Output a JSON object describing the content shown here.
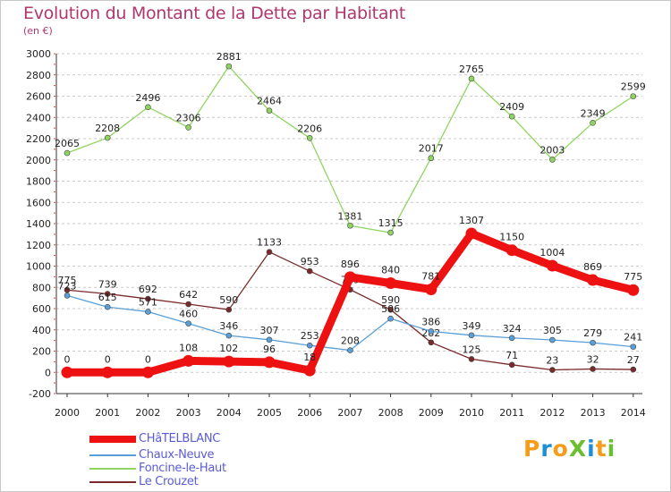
{
  "title": "Evolution du Montant de la Dette par Habitant",
  "subtitle": "(en €)",
  "logo_text": "ProXiti",
  "chart_data": {
    "type": "line",
    "title": "Evolution du Montant de la Dette par Habitant",
    "subtitle": "(en €)",
    "x": [
      "2000",
      "2001",
      "2002",
      "2003",
      "2004",
      "2005",
      "2006",
      "2007",
      "2008",
      "2009",
      "2010",
      "2011",
      "2012",
      "2013",
      "2014"
    ],
    "ylim": [
      -200,
      3000
    ],
    "yticks": [
      "-200",
      "0",
      "200",
      "400",
      "600",
      "800",
      "1000",
      "1200",
      "1400",
      "1600",
      "1800",
      "2000",
      "2200",
      "2400",
      "2600",
      "2800",
      "3000"
    ],
    "grid": "horizontal dashed",
    "legend_position": "bottom-left",
    "series": [
      {
        "name": "Le Crouzet",
        "color": "#7a2a2a",
        "values": [
          775,
          739,
          692,
          642,
          590,
          1133,
          953,
          779,
          590,
          282,
          125,
          71,
          23,
          32,
          27
        ]
      },
      {
        "name": "Foncine-le-Haut",
        "color": "#8fd460",
        "values": [
          2065,
          2208,
          2496,
          2306,
          2881,
          2464,
          2206,
          1381,
          1315,
          2017,
          2765,
          2409,
          2003,
          2349,
          2599
        ]
      },
      {
        "name": "Chaux-Neuve",
        "color": "#5a9fd8",
        "values": [
          723,
          615,
          571,
          460,
          346,
          307,
          253,
          208,
          506,
          386,
          349,
          324,
          305,
          279,
          241
        ]
      },
      {
        "name": "CHâTELBLANC",
        "color": "#ee1111",
        "values": [
          0,
          0,
          0,
          108,
          102,
          96,
          18,
          896,
          840,
          781,
          1307,
          1150,
          1004,
          869,
          775
        ]
      }
    ],
    "legend": [
      "CHâTELBLANC",
      "Chaux-Neuve",
      "Foncine-le-Haut",
      "Le Crouzet"
    ]
  }
}
